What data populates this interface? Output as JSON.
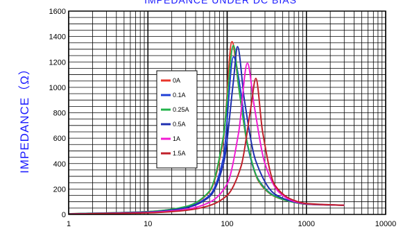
{
  "chart_data": {
    "type": "line",
    "title": "IMPEDANCE UNDER DC BIAS",
    "xlabel": "",
    "ylabel": "IMPEDANCE（Ω）",
    "x_scale": "log",
    "xlim": [
      1,
      10000
    ],
    "ylim": [
      0,
      1600
    ],
    "x_ticks": [
      1,
      10,
      100,
      1000,
      10000
    ],
    "x_tick_labels": [
      "1",
      "10",
      "100",
      "1000",
      "10000"
    ],
    "y_ticks": [
      0,
      200,
      400,
      600,
      800,
      1000,
      1200,
      1400,
      1600
    ],
    "y_tick_labels": [
      "0",
      "200",
      "400",
      "600",
      "800",
      "1000",
      "1200",
      "1400",
      "1600"
    ],
    "grid": true,
    "legend_position": "center-left",
    "series": [
      {
        "name": "0A",
        "color": "#e8352a",
        "x": [
          1,
          10,
          30,
          60,
          90,
          115,
          140,
          180,
          250,
          400,
          700,
          1000,
          3000
        ],
        "y": [
          5,
          22,
          60,
          180,
          600,
          1360,
          1000,
          550,
          260,
          140,
          95,
          80,
          72
        ]
      },
      {
        "name": "0.1A",
        "color": "#1f3fd6",
        "x": [
          1,
          10,
          30,
          60,
          90,
          120,
          150,
          180,
          250,
          400,
          700,
          1000,
          3000
        ],
        "y": [
          4,
          20,
          55,
          150,
          450,
          1240,
          950,
          550,
          270,
          145,
          96,
          82,
          72
        ]
      },
      {
        "name": "0.25A",
        "color": "#22b34a",
        "x": [
          1,
          10,
          30,
          60,
          90,
          120,
          140,
          180,
          250,
          400,
          700,
          1000,
          3000
        ],
        "y": [
          5,
          22,
          62,
          185,
          620,
          1330,
          1000,
          560,
          265,
          142,
          95,
          81,
          72
        ]
      },
      {
        "name": "0.5A",
        "color": "#1e2fb0",
        "x": [
          1,
          10,
          30,
          60,
          90,
          120,
          135,
          165,
          230,
          400,
          700,
          1000,
          3000
        ],
        "y": [
          4,
          19,
          52,
          140,
          400,
          1050,
          1320,
          900,
          420,
          160,
          98,
          82,
          72
        ]
      },
      {
        "name": "1A",
        "color": "#f21bd3",
        "x": [
          1,
          10,
          30,
          60,
          100,
          140,
          180,
          220,
          300,
          450,
          700,
          1000,
          3000
        ],
        "y": [
          3,
          15,
          40,
          95,
          240,
          650,
          1190,
          850,
          400,
          175,
          102,
          84,
          72
        ]
      },
      {
        "name": "1.5A",
        "color": "#c0202a",
        "x": [
          1,
          10,
          30,
          60,
          100,
          150,
          200,
          230,
          280,
          400,
          700,
          1000,
          3000
        ],
        "y": [
          3,
          12,
          32,
          70,
          150,
          380,
          850,
          1070,
          650,
          230,
          110,
          86,
          72
        ]
      }
    ]
  }
}
